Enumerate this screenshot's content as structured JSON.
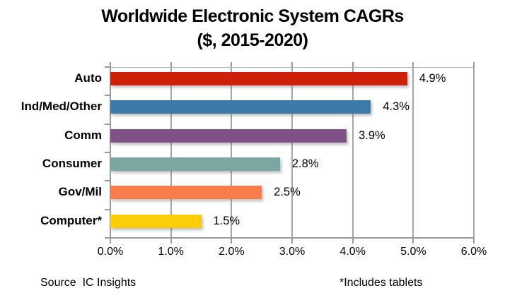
{
  "title": {
    "line1": "Worldwide Electronic System CAGRs",
    "line2": "($, 2015-2020)"
  },
  "chart_data": {
    "type": "bar",
    "orientation": "horizontal",
    "title": "Worldwide Electronic System CAGRs ($, 2015-2020)",
    "categories": [
      "Auto",
      "Ind/Med/Other",
      "Comm",
      "Consumer",
      "Gov/Mil",
      "Computer*"
    ],
    "values": [
      4.9,
      4.3,
      3.9,
      2.8,
      2.5,
      1.5
    ],
    "value_labels": [
      "4.9%",
      "4.3%",
      "3.9%",
      "2.8%",
      "2.5%",
      "1.5%"
    ],
    "bar_colors": [
      "#ce2008",
      "#3e79ac",
      "#7e5285",
      "#7ba7a3",
      "#f97c49",
      "#fbce07"
    ],
    "xlim": [
      0,
      6
    ],
    "x_tick_values": [
      0,
      1,
      2,
      3,
      4,
      5,
      6
    ],
    "x_tick_labels": [
      "0.0%",
      "1.0%",
      "2.0%",
      "3.0%",
      "4.0%",
      "5.0%",
      "6.0%"
    ],
    "grid": true,
    "gridline_color": "#a6a6a6",
    "legend": "none"
  },
  "footer": {
    "source": "Source  IC Insights",
    "note": "*Includes tablets"
  }
}
